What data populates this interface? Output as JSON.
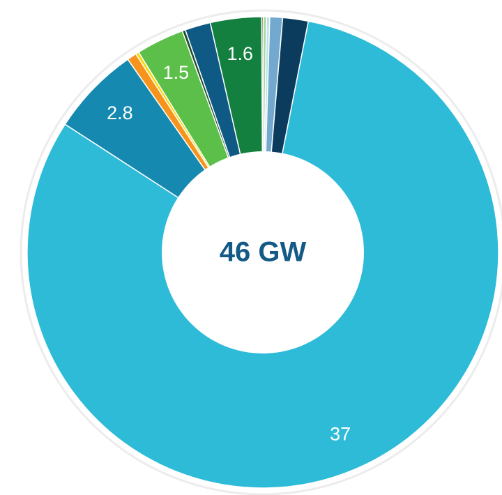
{
  "chart_data": {
    "type": "donut",
    "center_label": "46 GW",
    "values": [
      0.05,
      0.1,
      0.1,
      0.4,
      0.8,
      37,
      2.8,
      0.3,
      0.1,
      1.5,
      0.1,
      0.8,
      1.6
    ],
    "value_labels": [
      null,
      null,
      null,
      null,
      null,
      "37",
      "2.8",
      null,
      null,
      "1.5",
      null,
      null,
      "1.6"
    ],
    "colors": [
      "#8a5a2b",
      "#a8d8a0",
      "#b8e4ee",
      "#74a9cf",
      "#0b3c5d",
      "#2dbbd7",
      "#1589b0",
      "#f7941d",
      "#f5d800",
      "#5cbf4a",
      "#1f4e2c",
      "#0e5a84",
      "#138040"
    ]
  }
}
